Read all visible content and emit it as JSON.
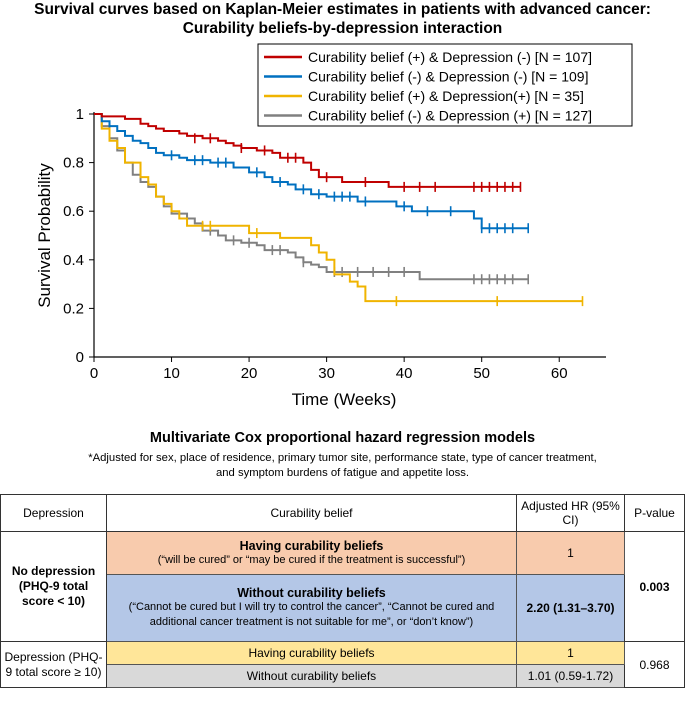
{
  "header": {
    "title_line1": "Survival curves based on Kaplan-Meier estimates in patients with advanced cancer:",
    "title_line2": "Curability beliefs-by-depression interaction"
  },
  "chart_data": {
    "type": "line",
    "title": "Survival curves based on Kaplan-Meier estimates in patients with advanced cancer: Curability beliefs-by-depression interaction",
    "xlabel": "Time (Weeks)",
    "ylabel": "Survival Probability",
    "xlim": [
      0,
      65
    ],
    "ylim": [
      0,
      1
    ],
    "xticks": [
      "0",
      "10",
      "20",
      "30",
      "40",
      "50",
      "60"
    ],
    "yticks": [
      "0",
      "0.2",
      "0.4",
      "0.6",
      "0.8",
      "1"
    ],
    "legend_position": "top-right",
    "series": [
      {
        "name": "Curability belief (+) & Depression (-)  [N = 107]",
        "color": "#c00000",
        "steps": [
          [
            0,
            1
          ],
          [
            1,
            0.99
          ],
          [
            4,
            0.98
          ],
          [
            6,
            0.96
          ],
          [
            7,
            0.95
          ],
          [
            8,
            0.94
          ],
          [
            9,
            0.93
          ],
          [
            11,
            0.92
          ],
          [
            12,
            0.91
          ],
          [
            14,
            0.9
          ],
          [
            16,
            0.89
          ],
          [
            17,
            0.88
          ],
          [
            18,
            0.87
          ],
          [
            19,
            0.86
          ],
          [
            21,
            0.85
          ],
          [
            23,
            0.84
          ],
          [
            24,
            0.82
          ],
          [
            27,
            0.8
          ],
          [
            28,
            0.77
          ],
          [
            29,
            0.74
          ],
          [
            32,
            0.72
          ],
          [
            38,
            0.7
          ],
          [
            55,
            0.7
          ]
        ],
        "censored": [
          [
            13,
            0.9
          ],
          [
            15,
            0.9
          ],
          [
            19,
            0.86
          ],
          [
            22,
            0.85
          ],
          [
            25,
            0.82
          ],
          [
            26,
            0.82
          ],
          [
            30,
            0.74
          ],
          [
            35,
            0.72
          ],
          [
            40,
            0.7
          ],
          [
            42,
            0.7
          ],
          [
            44,
            0.7
          ],
          [
            49,
            0.7
          ],
          [
            50,
            0.7
          ],
          [
            51,
            0.7
          ],
          [
            52,
            0.7
          ],
          [
            53,
            0.7
          ],
          [
            54,
            0.7
          ],
          [
            55,
            0.7
          ]
        ]
      },
      {
        "name": "Curability belief (-) & Depression (-)  [N = 109]",
        "color": "#0070c0",
        "steps": [
          [
            0,
            1
          ],
          [
            1,
            0.97
          ],
          [
            2,
            0.95
          ],
          [
            3,
            0.93
          ],
          [
            4,
            0.91
          ],
          [
            5,
            0.89
          ],
          [
            6,
            0.88
          ],
          [
            7,
            0.86
          ],
          [
            8,
            0.84
          ],
          [
            9,
            0.83
          ],
          [
            11,
            0.82
          ],
          [
            12,
            0.81
          ],
          [
            15,
            0.8
          ],
          [
            18,
            0.78
          ],
          [
            20,
            0.76
          ],
          [
            22,
            0.74
          ],
          [
            23,
            0.72
          ],
          [
            25,
            0.71
          ],
          [
            26,
            0.69
          ],
          [
            28,
            0.67
          ],
          [
            30,
            0.66
          ],
          [
            34,
            0.64
          ],
          [
            39,
            0.62
          ],
          [
            41,
            0.6
          ],
          [
            49,
            0.57
          ],
          [
            50,
            0.53
          ],
          [
            56,
            0.53
          ]
        ],
        "censored": [
          [
            10,
            0.83
          ],
          [
            13,
            0.81
          ],
          [
            14,
            0.81
          ],
          [
            16,
            0.8
          ],
          [
            17,
            0.8
          ],
          [
            21,
            0.76
          ],
          [
            24,
            0.72
          ],
          [
            27,
            0.69
          ],
          [
            29,
            0.67
          ],
          [
            31,
            0.66
          ],
          [
            32,
            0.66
          ],
          [
            33,
            0.66
          ],
          [
            35,
            0.64
          ],
          [
            40,
            0.62
          ],
          [
            43,
            0.6
          ],
          [
            46,
            0.6
          ],
          [
            50,
            0.53
          ],
          [
            51,
            0.53
          ],
          [
            52,
            0.53
          ],
          [
            53,
            0.53
          ],
          [
            54,
            0.53
          ],
          [
            56,
            0.53
          ]
        ]
      },
      {
        "name": "Curability belief (+) & Depression(+) [N = 35]",
        "color": "#f0b400",
        "steps": [
          [
            0,
            1
          ],
          [
            1,
            0.94
          ],
          [
            2,
            0.89
          ],
          [
            3,
            0.86
          ],
          [
            4,
            0.8
          ],
          [
            6,
            0.74
          ],
          [
            7,
            0.71
          ],
          [
            8,
            0.66
          ],
          [
            9,
            0.63
          ],
          [
            10,
            0.6
          ],
          [
            11,
            0.57
          ],
          [
            12,
            0.54
          ],
          [
            20,
            0.51
          ],
          [
            24,
            0.49
          ],
          [
            28,
            0.46
          ],
          [
            29,
            0.43
          ],
          [
            30,
            0.4
          ],
          [
            31,
            0.34
          ],
          [
            33,
            0.31
          ],
          [
            34,
            0.29
          ],
          [
            35,
            0.23
          ],
          [
            63,
            0.23
          ]
        ],
        "censored": [
          [
            14,
            0.54
          ],
          [
            15,
            0.54
          ],
          [
            21,
            0.51
          ],
          [
            39,
            0.23
          ],
          [
            52,
            0.23
          ],
          [
            63,
            0.23
          ]
        ]
      },
      {
        "name": "Curability belief (-) & Depression (+)  [N = 127]",
        "color": "#808080",
        "steps": [
          [
            0,
            1
          ],
          [
            1,
            0.95
          ],
          [
            2,
            0.9
          ],
          [
            3,
            0.85
          ],
          [
            4,
            0.8
          ],
          [
            5,
            0.75
          ],
          [
            6,
            0.72
          ],
          [
            7,
            0.7
          ],
          [
            8,
            0.66
          ],
          [
            9,
            0.62
          ],
          [
            10,
            0.59
          ],
          [
            12,
            0.57
          ],
          [
            13,
            0.55
          ],
          [
            14,
            0.52
          ],
          [
            16,
            0.5
          ],
          [
            17,
            0.48
          ],
          [
            19,
            0.47
          ],
          [
            21,
            0.46
          ],
          [
            22,
            0.44
          ],
          [
            25,
            0.43
          ],
          [
            26,
            0.41
          ],
          [
            27,
            0.39
          ],
          [
            28,
            0.38
          ],
          [
            29,
            0.37
          ],
          [
            30,
            0.35
          ],
          [
            42,
            0.32
          ],
          [
            56,
            0.32
          ]
        ],
        "censored": [
          [
            15,
            0.52
          ],
          [
            18,
            0.48
          ],
          [
            20,
            0.47
          ],
          [
            23,
            0.44
          ],
          [
            24,
            0.44
          ],
          [
            27,
            0.39
          ],
          [
            31,
            0.35
          ],
          [
            32,
            0.35
          ],
          [
            34,
            0.35
          ],
          [
            36,
            0.35
          ],
          [
            38,
            0.35
          ],
          [
            40,
            0.35
          ],
          [
            49,
            0.32
          ],
          [
            50,
            0.32
          ],
          [
            51,
            0.32
          ],
          [
            52,
            0.32
          ],
          [
            53,
            0.32
          ],
          [
            54,
            0.32
          ],
          [
            56,
            0.32
          ]
        ]
      }
    ]
  },
  "table_section": {
    "title": "Multivariate Cox proportional hazard regression models",
    "footnote_line1": "*Adjusted for sex, place of residence, primary tumor site, performance  state, type of cancer treatment,",
    "footnote_line2": "and symptom burdens of fatigue and appetite loss.",
    "headers": {
      "depression": "Depression",
      "curability": "Curability belief",
      "hr": "Adjusted HR (95% CI)",
      "pvalue": "P-value"
    },
    "group1": {
      "label": "No depression (PHQ-9 total score < 10)",
      "pvalue": "0.003",
      "row1": {
        "title": "Having curability beliefs",
        "desc": "(“will be cured” or “may be cured if the treatment is successful”)",
        "hr": "1"
      },
      "row2": {
        "title": "Without curability beliefs",
        "desc": "(“Cannot  be cured but I will try to control the cancer”, “Cannot  be cured and additional cancer treatment is not suitable for me”, or “don’t know”)",
        "hr": "2.20 (1.31–3.70)"
      }
    },
    "group2": {
      "label": "Depression (PHQ-9 total score ≥ 10)",
      "pvalue": "0.968",
      "row1": {
        "title": "Having  curability beliefs",
        "hr": "1"
      },
      "row2": {
        "title": "Without curability beliefs",
        "hr": "1.01 (0.59-1.72)"
      }
    }
  }
}
